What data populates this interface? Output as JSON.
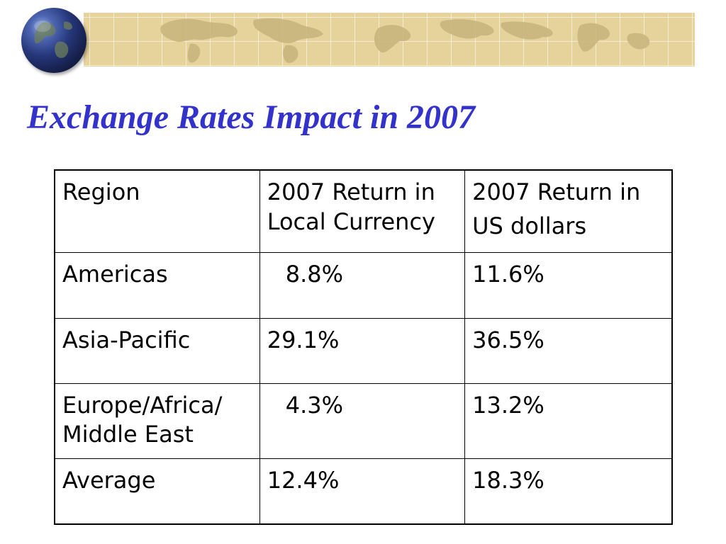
{
  "slide": {
    "title": "Exchange Rates Impact in 2007"
  },
  "table": {
    "headers": [
      [
        "Region"
      ],
      [
        "2007 Return in",
        "Local Currency"
      ],
      [
        "2007 Return in",
        "US dollars"
      ]
    ],
    "rows": [
      {
        "region": [
          "Americas"
        ],
        "local": "8.8%",
        "usd": "11.6%"
      },
      {
        "region": [
          "Asia-Pacific"
        ],
        "local": "29.1%",
        "usd": "36.5%"
      },
      {
        "region": [
          "Europe/Africa/",
          "Middle East"
        ],
        "local": "4.3%",
        "usd": "13.2%"
      },
      {
        "region": [
          "Average"
        ],
        "local": "12.4%",
        "usd": "18.3%"
      }
    ]
  },
  "colors": {
    "title": "#3333cc",
    "banner": "#e6d29b",
    "map_land": "#c9b57e",
    "table_border": "#000000"
  },
  "icons": [
    "globe-icon",
    "world-map-banner"
  ]
}
